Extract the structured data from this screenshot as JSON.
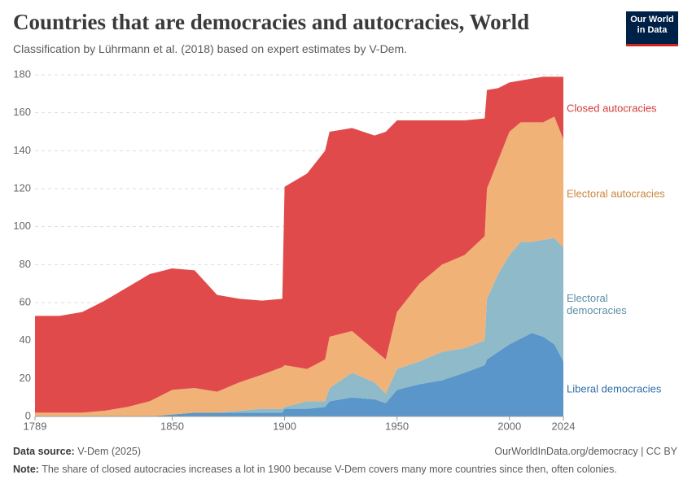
{
  "header": {
    "title": "Countries that are democracies and autocracies, World",
    "subtitle": "Classification by Lührmann et al. (2018) based on expert estimates by V-Dem.",
    "logo": "Our World in Data"
  },
  "chart_data": {
    "type": "stacked-area",
    "x": [
      1789,
      1800,
      1810,
      1820,
      1830,
      1840,
      1850,
      1860,
      1870,
      1880,
      1890,
      1899,
      1900,
      1910,
      1918,
      1920,
      1930,
      1940,
      1945,
      1950,
      1960,
      1970,
      1980,
      1989,
      1990,
      1995,
      2000,
      2005,
      2010,
      2015,
      2020,
      2024
    ],
    "series": [
      {
        "name": "Liberal democracies",
        "color": "#5a96c9",
        "label_color": "#2f6fa8",
        "values": [
          0,
          0,
          0,
          0,
          0,
          0,
          1,
          2,
          2,
          2,
          2,
          2,
          4,
          4,
          5,
          8,
          10,
          9,
          7,
          14,
          17,
          19,
          23,
          27,
          30,
          34,
          38,
          41,
          44,
          42,
          38,
          29
        ]
      },
      {
        "name": "Electoral democracies",
        "color": "#8fbac9",
        "label_color": "#5b8fa6",
        "values": [
          0,
          0,
          0,
          0,
          0,
          0,
          0,
          0,
          0,
          1,
          2,
          2,
          1,
          4,
          3,
          7,
          13,
          9,
          5,
          11,
          12,
          15,
          13,
          13,
          32,
          41,
          47,
          51,
          48,
          51,
          56,
          60
        ]
      },
      {
        "name": "Electoral autocracies",
        "color": "#f1b277",
        "label_color": "#c9873e",
        "values": [
          2,
          2,
          2,
          3,
          5,
          8,
          13,
          13,
          11,
          15,
          18,
          22,
          22,
          17,
          22,
          27,
          22,
          17,
          18,
          30,
          41,
          46,
          49,
          55,
          58,
          60,
          65,
          63,
          63,
          62,
          64,
          57
        ]
      },
      {
        "name": "Closed autocracies",
        "color": "#e04a4a",
        "label_color": "#d33a3a",
        "values": [
          51,
          51,
          53,
          58,
          63,
          67,
          64,
          62,
          51,
          44,
          39,
          36,
          94,
          103,
          110,
          108,
          107,
          113,
          120,
          101,
          86,
          76,
          71,
          62,
          52,
          38,
          26,
          22,
          23,
          24,
          21,
          33
        ]
      }
    ],
    "xlim": [
      1789,
      2024
    ],
    "xticks": [
      1789,
      1850,
      1900,
      1950,
      2000,
      2024
    ],
    "ylim": [
      0,
      180
    ],
    "yticks": [
      0,
      20,
      40,
      60,
      80,
      100,
      120,
      140,
      160,
      180
    ],
    "grid": true
  },
  "footer": {
    "source_label": "Data source:",
    "source": "V-Dem (2025)",
    "url": "OurWorldInData.org/democracy | CC BY",
    "note_label": "Note:",
    "note": "The share of closed autocracies increases a lot in 1900 because V-Dem covers many more countries since then, often colonies."
  }
}
